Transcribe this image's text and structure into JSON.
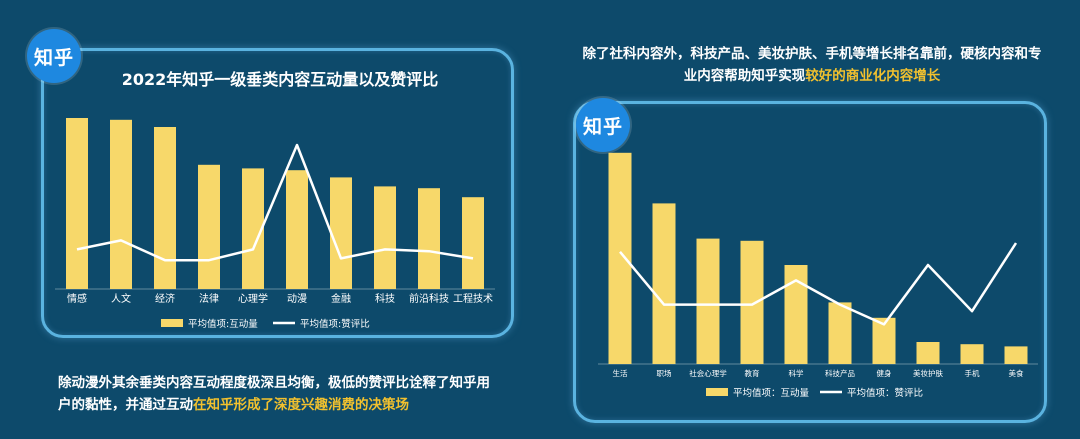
{
  "colors": {
    "background": "#0d4a6b",
    "panel_border": "#5ab3e0",
    "bar": "#f7d86a",
    "line": "#ffffff",
    "highlight": "#f2c12e",
    "logo": "#1e88e0"
  },
  "left": {
    "logo_text": "知乎",
    "title": "2022年知乎一级垂类内容互动量以及赞评比",
    "paragraph_plain": "除动漫外其余垂类内容互动程度极深且均衡，极低的赞评比诠释了知乎用户的黏性，并通过互动",
    "paragraph_highlight": "在知乎形成了深度兴趣消费的决策场"
  },
  "right": {
    "logo_text": "知乎",
    "paragraph_plain": "除了社科内容外，科技产品、美妆护肤、手机等增长排名靠前，硬核内容和专业内容帮助知乎实现",
    "paragraph_highlight": "较好的商业化内容增长"
  },
  "chart_data": [
    {
      "type": "bar",
      "title": "2022年知乎一级垂类内容互动量以及赞评比",
      "categories": [
        "情感",
        "人文",
        "经济",
        "法律",
        "心理学",
        "动漫",
        "金融",
        "科技",
        "前沿科技",
        "工程技术"
      ],
      "series": [
        {
          "name": "平均值项:互动量",
          "type": "bar",
          "values": [
            95,
            94,
            90,
            69,
            67,
            66,
            62,
            57,
            56,
            51
          ]
        },
        {
          "name": "平均值项:赞评比",
          "type": "line",
          "values": [
            22,
            27,
            16,
            16,
            22,
            80,
            17,
            22,
            21,
            17
          ]
        }
      ],
      "ylim": [
        0,
        100
      ],
      "legend": "bottom"
    },
    {
      "type": "bar",
      "title": "",
      "categories": [
        "生活",
        "职场",
        "社会心理学",
        "教育",
        "科学",
        "科技产品",
        "健身",
        "美妆护肤",
        "手机",
        "美食"
      ],
      "series": [
        {
          "name": "平均值项：互动量",
          "type": "bar",
          "values": [
            96,
            73,
            57,
            56,
            45,
            28,
            21,
            10,
            9,
            8
          ]
        },
        {
          "name": "平均值项：赞评比",
          "type": "line",
          "values": [
            51,
            27,
            27,
            27,
            38,
            27,
            18,
            45,
            24,
            55
          ]
        }
      ],
      "ylim": [
        0,
        100
      ],
      "legend": "bottom"
    }
  ]
}
